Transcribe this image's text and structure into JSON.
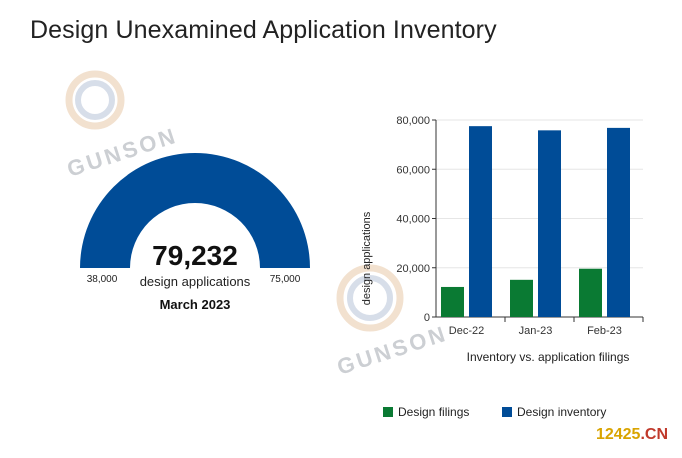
{
  "title": "Design Unexamined Application Inventory",
  "gauge": {
    "value": 79232,
    "value_label": "79,232",
    "unit_label": "design applications",
    "period": "March 2023",
    "min_label": "38,000",
    "max_label": "75,000",
    "color": "#004c97"
  },
  "watermark": {
    "text": "GUNSON"
  },
  "corner_mark": {
    "prefix": "12425",
    "suffix": ".CN"
  },
  "chart_data": {
    "type": "bar",
    "categories": [
      "Dec-22",
      "Jan-23",
      "Feb-23"
    ],
    "series": [
      {
        "name": "Design filings",
        "values": [
          12200,
          15100,
          19600
        ],
        "color": "#0a7a33"
      },
      {
        "name": "Design inventory",
        "values": [
          77500,
          75800,
          76800
        ],
        "color": "#004c97"
      }
    ],
    "xlabel": "Inventory vs. application filings",
    "ylabel": "design applications",
    "ylim": [
      0,
      80000
    ],
    "yticks": [
      0,
      20000,
      40000,
      60000,
      80000
    ],
    "ytick_labels": [
      "0",
      "20,000",
      "40,000",
      "60,000",
      "80,000"
    ],
    "grid": true,
    "legend_position": "bottom"
  }
}
